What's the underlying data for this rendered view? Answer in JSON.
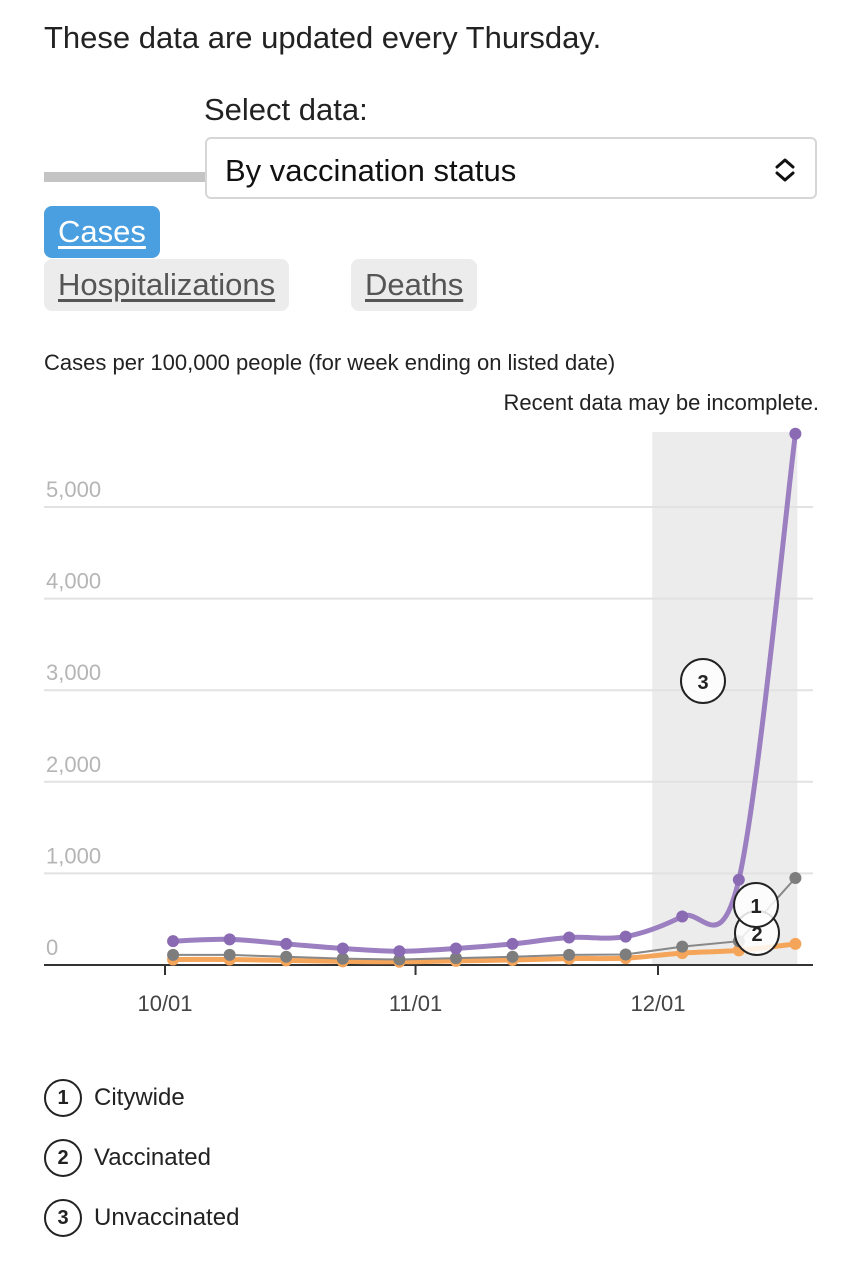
{
  "intro_text": "These data are updated every Thursday.",
  "select": {
    "label": "Select data:",
    "value": "By vaccination status"
  },
  "tabs": [
    {
      "label": "Cases",
      "active": true
    },
    {
      "label": "Hospitalizations",
      "active": false
    },
    {
      "label": "Deaths",
      "active": false
    }
  ],
  "colors": {
    "unvaccinated": "#9b7fc0",
    "citywide": "#888888",
    "vaccinated": "#f5a55a",
    "active_tab": "#4a9fe0"
  },
  "chart_data": {
    "type": "line",
    "title": "Cases per 100,000 people (for week ending on listed date)",
    "note": "Recent data may be incomplete.",
    "x": [
      "2021-10-02",
      "2021-10-09",
      "2021-10-16",
      "2021-10-23",
      "2021-10-30",
      "2021-11-06",
      "2021-11-13",
      "2021-11-20",
      "2021-11-27",
      "2021-12-04",
      "2021-12-11",
      "2021-12-18"
    ],
    "x_ticks": [
      {
        "date": "2021-10-01",
        "label": "10/01"
      },
      {
        "date": "2021-11-01",
        "label": "11/01"
      },
      {
        "date": "2021-12-01",
        "label": "12/01"
      }
    ],
    "ylim": [
      0,
      5500
    ],
    "yticks": [
      0,
      1000,
      2000,
      3000,
      4000,
      5000
    ],
    "ytick_labels": [
      "0",
      "1,000",
      "2,000",
      "3,000",
      "4,000",
      "5,000"
    ],
    "incomplete_range": [
      "2021-12-04",
      "2021-12-18"
    ],
    "series": [
      {
        "name": "Unvaccinated",
        "key": "3",
        "color": "#9b7fc0",
        "values": [
          260,
          280,
          230,
          180,
          150,
          180,
          230,
          300,
          310,
          530,
          930,
          5800
        ]
      },
      {
        "name": "Citywide",
        "key": "1",
        "color": "#888888",
        "values": [
          110,
          110,
          90,
          70,
          60,
          75,
          90,
          110,
          115,
          200,
          260,
          950
        ]
      },
      {
        "name": "Vaccinated",
        "key": "2",
        "color": "#f5a55a",
        "values": [
          60,
          60,
          50,
          40,
          35,
          45,
          55,
          70,
          75,
          130,
          160,
          230
        ]
      }
    ],
    "legend": [
      {
        "key": "1",
        "label": "Citywide"
      },
      {
        "key": "2",
        "label": "Vaccinated"
      },
      {
        "key": "3",
        "label": "Unvaccinated"
      }
    ]
  }
}
